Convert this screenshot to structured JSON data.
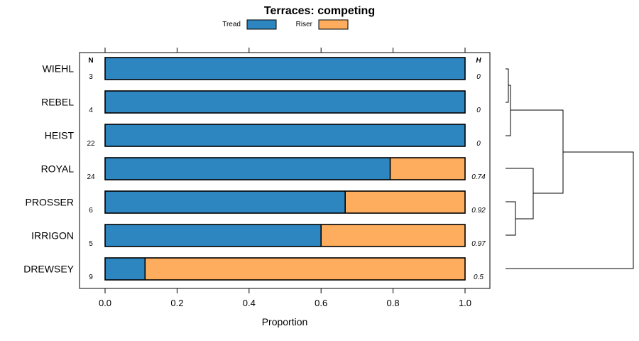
{
  "chart_data": {
    "type": "bar",
    "orientation": "horizontal",
    "stacked": true,
    "title": "Terraces: competing",
    "xlabel": "Proportion",
    "ylabel": "",
    "xlim": [
      -0.07,
      1.07
    ],
    "xticks": [
      0.0,
      0.2,
      0.4,
      0.6,
      0.8,
      1.0
    ],
    "xtick_labels": [
      "0.0",
      "0.2",
      "0.4",
      "0.6",
      "0.8",
      "1.0"
    ],
    "legend_position": "top",
    "n_header": "N",
    "h_header": "H",
    "categories": [
      "WIEHL",
      "REBEL",
      "HEIST",
      "ROYAL",
      "PROSSER",
      "IRRIGON",
      "DREWSEY"
    ],
    "n_values": [
      "3",
      "4",
      "22",
      "24",
      "6",
      "5",
      "9"
    ],
    "h_values": [
      "0",
      "0",
      "0",
      "0.74",
      "0.92",
      "0.97",
      "0.5"
    ],
    "series": [
      {
        "name": "Tread",
        "color": "#2e86c1",
        "values": [
          1.0,
          1.0,
          1.0,
          0.792,
          0.667,
          0.6,
          0.111
        ]
      },
      {
        "name": "Riser",
        "color": "#fdad5d",
        "values": [
          0.0,
          0.0,
          0.0,
          0.208,
          0.333,
          0.4,
          0.889
        ]
      }
    ],
    "dendrogram": "hierarchical clustering tree of the categories, drawn on the right"
  }
}
